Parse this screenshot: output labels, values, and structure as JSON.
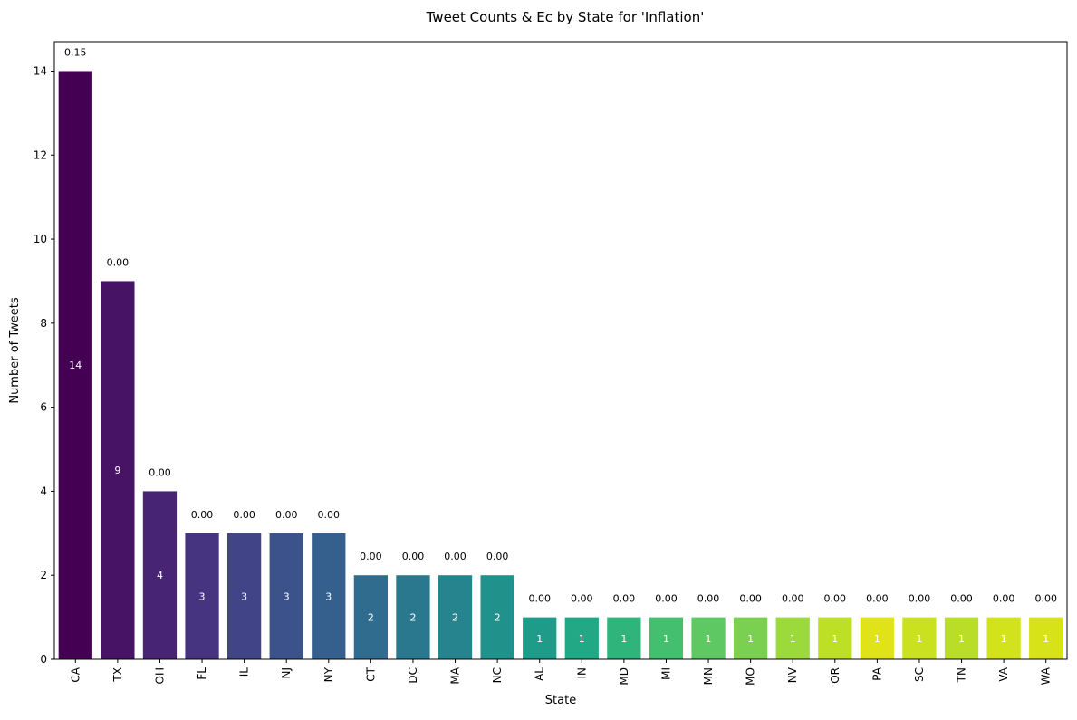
{
  "chart_data": {
    "type": "bar",
    "title": "Tweet Counts & Ec by State for 'Inflation'",
    "xlabel": "State",
    "ylabel": "Number of Tweets",
    "ylim": [
      0,
      14.7
    ],
    "yticks": [
      0,
      2,
      4,
      6,
      8,
      10,
      12,
      14
    ],
    "grid": false,
    "categories": [
      "CA",
      "TX",
      "OH",
      "FL",
      "IL",
      "NJ",
      "NY",
      "CT",
      "DC",
      "MA",
      "NC",
      "AL",
      "IN",
      "MD",
      "MI",
      "MN",
      "MO",
      "NV",
      "OR",
      "PA",
      "SC",
      "TN",
      "VA",
      "WA"
    ],
    "values": [
      14,
      9,
      4,
      3,
      3,
      3,
      3,
      2,
      2,
      2,
      2,
      1,
      1,
      1,
      1,
      1,
      1,
      1,
      1,
      1,
      1,
      1,
      1,
      1
    ],
    "top_labels": [
      "0.15",
      "0.00",
      "0.00",
      "0.00",
      "0.00",
      "0.00",
      "0.00",
      "0.00",
      "0.00",
      "0.00",
      "0.00",
      "0.00",
      "0.00",
      "0.00",
      "0.00",
      "0.00",
      "0.00",
      "0.00",
      "0.00",
      "0.00",
      "0.00",
      "0.00",
      "0.00",
      "0.00"
    ],
    "inside_labels": [
      "14",
      "9",
      "4",
      "3",
      "3",
      "3",
      "3",
      "2",
      "2",
      "2",
      "2",
      "1",
      "1",
      "1",
      "1",
      "1",
      "1",
      "1",
      "1",
      "1",
      "1",
      "1",
      "1",
      "1"
    ],
    "colors": [
      "#440154",
      "#471365",
      "#482475",
      "#463480",
      "#414487",
      "#3b528b",
      "#355f8d",
      "#2f6c8e",
      "#2a788e",
      "#25848e",
      "#21918c",
      "#1e9c89",
      "#22a884",
      "#2fb47c",
      "#44bf70",
      "#5ec962",
      "#7ad151",
      "#9bd93c",
      "#bddf26",
      "#dfe318",
      "#cae11f",
      "#bade28",
      "#d2e21b",
      "#d8e219"
    ]
  }
}
